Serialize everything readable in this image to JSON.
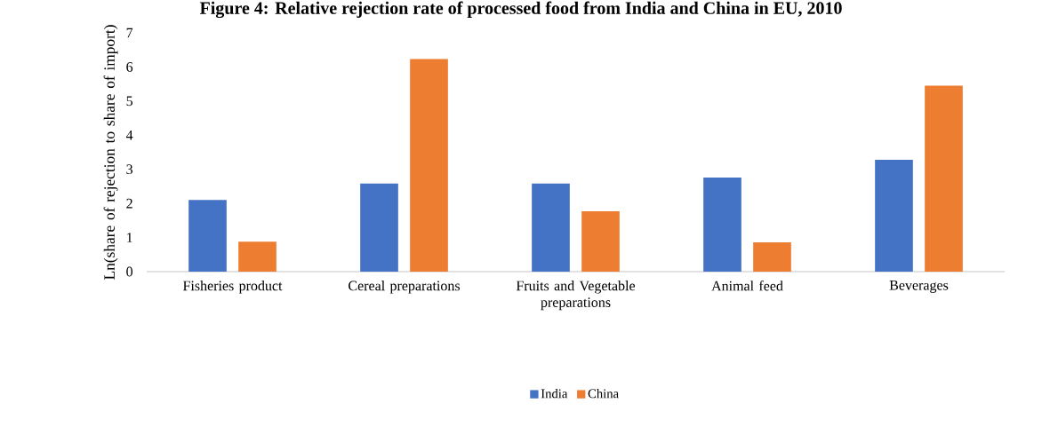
{
  "chart_data": {
    "type": "bar",
    "title": "Figure 4: Relative rejection rate of processed food from India and China in EU, 2010",
    "ylabel": "Ln(share of rejection to share of import)",
    "categories": [
      "Fisheries product",
      "Cereal preparations",
      "Fruits and Vegetable preparations",
      "Animal feed",
      "Beverages"
    ],
    "series": [
      {
        "name": "India",
        "color": "#4472c4",
        "values": [
          2.1,
          2.58,
          2.58,
          2.76,
          3.28
        ]
      },
      {
        "name": "China",
        "color": "#ed7d31",
        "values": [
          0.88,
          6.23,
          1.77,
          0.86,
          5.45
        ]
      }
    ],
    "ylim": [
      0,
      7
    ],
    "yticks": [
      0,
      1,
      2,
      3,
      4,
      5,
      6,
      7
    ],
    "legend": "bottom"
  }
}
